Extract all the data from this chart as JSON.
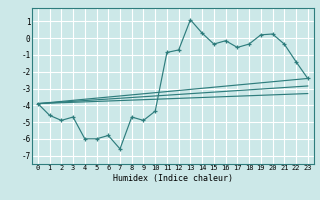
{
  "title": "",
  "xlabel": "Humidex (Indice chaleur)",
  "bg_color": "#cce8e8",
  "grid_color": "#ffffff",
  "line_color": "#2e7d7d",
  "xlim": [
    -0.5,
    23.5
  ],
  "ylim": [
    -7.5,
    1.8
  ],
  "yticks": [
    1,
    0,
    -1,
    -2,
    -3,
    -4,
    -5,
    -6,
    -7
  ],
  "xticks": [
    0,
    1,
    2,
    3,
    4,
    5,
    6,
    7,
    8,
    9,
    10,
    11,
    12,
    13,
    14,
    15,
    16,
    17,
    18,
    19,
    20,
    21,
    22,
    23
  ],
  "line1": {
    "x": [
      0,
      1,
      2,
      3,
      4,
      5,
      6,
      7,
      8,
      9,
      10,
      11,
      12,
      13,
      14,
      15,
      16,
      17,
      18,
      19,
      20,
      21,
      22,
      23
    ],
    "y": [
      -3.9,
      -4.6,
      -4.9,
      -4.7,
      -6.0,
      -6.0,
      -5.8,
      -6.6,
      -4.7,
      -4.9,
      -4.35,
      -0.85,
      -0.7,
      1.1,
      0.3,
      -0.35,
      -0.15,
      -0.55,
      -0.35,
      0.2,
      0.25,
      -0.35,
      -1.4,
      -2.4
    ]
  },
  "line2": {
    "x": [
      0,
      23
    ],
    "y": [
      -3.9,
      -2.4
    ]
  },
  "line3": {
    "x": [
      0,
      23
    ],
    "y": [
      -3.9,
      -2.85
    ]
  },
  "line4": {
    "x": [
      0,
      23
    ],
    "y": [
      -3.9,
      -3.3
    ]
  }
}
